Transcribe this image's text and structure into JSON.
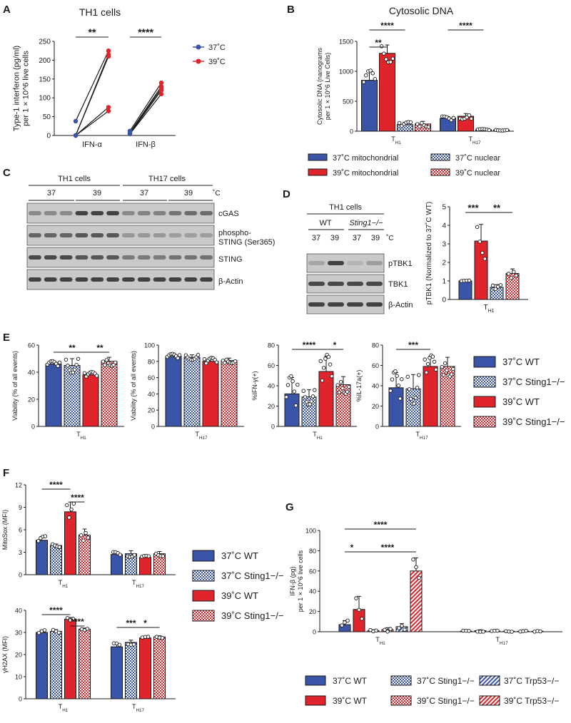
{
  "colors": {
    "blue": "#3a55a8",
    "red": "#e0242b",
    "ink": "#1a1a1a",
    "gel_bg": "#c9c9c9",
    "band": "#3b3b3b"
  },
  "panels": {
    "A": {
      "letter": "A",
      "title": "TH1 cells",
      "legend": [
        "37˚C",
        "39˚C"
      ]
    },
    "B": {
      "letter": "B",
      "title": "Cytosolic DNA",
      "legend": [
        "37˚C mitochondrial",
        "39˚C mitochondrial",
        "37˚C nuclear",
        "39˚C nuclear"
      ]
    },
    "C": {
      "letter": "C",
      "groups": [
        "TH1 cells",
        "TH17 cells"
      ],
      "temps": [
        "37",
        "39",
        "37",
        "39"
      ],
      "unit": "˚C",
      "rows": [
        "cGAS",
        "phospho-STING (Ser365)",
        "STING",
        "β-Actin"
      ]
    },
    "D": {
      "letter": "D",
      "group": "TH1 cells",
      "genotypes": [
        "WT",
        "Sting1−/−"
      ],
      "temps": [
        "37",
        "39",
        "37",
        "39"
      ],
      "unit": "˚C",
      "rows": [
        "pTBK1",
        "TBK1",
        "β-Actin"
      ]
    },
    "E": {
      "letter": "E",
      "legend": [
        "37˚C WT",
        "37˚C Sting1−/−",
        "39˚C WT",
        "39˚C Sting1−/−"
      ]
    },
    "F": {
      "letter": "F",
      "legend": [
        "37˚C WT",
        "37˚C Sting1−/−",
        "39˚C WT",
        "39˚C Sting1−/−"
      ]
    },
    "G": {
      "letter": "G",
      "legend": [
        "37˚C WT",
        "37˚C Sting1−/−",
        "37˚C Trp53−/−",
        "39˚C WT",
        "39˚C Sting1−/−",
        "39˚C Trp53−/−"
      ]
    }
  },
  "chart_data": [
    {
      "id": "A",
      "type": "scatter",
      "title": "TH1 cells",
      "ylabel": "Type-1 interferon (pg/ml) per 1 × 10^6 live cells",
      "categories": [
        "IFN-α",
        "IFN-β"
      ],
      "ylim": [
        0,
        250
      ],
      "yticks": [
        0,
        50,
        100,
        150,
        200,
        250
      ],
      "series": [
        {
          "name": "37˚C",
          "color": "#3a55a8",
          "values": [
            [
              38,
              0,
              0,
              0,
              0
            ],
            [
              12,
              8,
              6,
              5,
              4
            ]
          ]
        },
        {
          "name": "39˚C",
          "color": "#e0242b",
          "values": [
            [
              225,
              215,
              210,
              75,
              65
            ],
            [
              140,
              130,
              125,
              120,
              110
            ]
          ]
        }
      ],
      "significance": [
        {
          "category": "IFN-α",
          "label": "**"
        },
        {
          "category": "IFN-β",
          "label": "****"
        }
      ]
    },
    {
      "id": "B",
      "type": "bar",
      "title": "Cytosolic DNA",
      "ylabel": "Cytosolic DNA (nanograms per 1 × 10^6 Live Cells)",
      "categories": [
        "TH1",
        "TH17"
      ],
      "ylim": [
        0,
        1500
      ],
      "yticks": [
        0,
        500,
        1000,
        1500
      ],
      "series": [
        {
          "name": "37˚C mitochondrial",
          "values": [
            850,
            215
          ]
        },
        {
          "name": "39˚C mitochondrial",
          "values": [
            1300,
            250
          ]
        },
        {
          "name": "37˚C nuclear",
          "values": [
            110,
            25
          ]
        },
        {
          "name": "39˚C nuclear",
          "values": [
            120,
            20
          ]
        }
      ],
      "errors": [
        [
          150,
          30
        ],
        [
          140,
          45
        ],
        [
          40,
          10
        ],
        [
          45,
          8
        ]
      ],
      "significance": [
        {
          "group": 0,
          "from": 0,
          "to": 1,
          "label": "**"
        },
        {
          "group": 0,
          "from": 0,
          "to": 2,
          "label": "****"
        },
        {
          "group": 1,
          "from": 0,
          "to": 2,
          "label": "****"
        }
      ]
    },
    {
      "id": "D",
      "type": "bar",
      "ylabel": "pTBK1 (Normalized to 37˚C WT)",
      "categories": [
        "TH1"
      ],
      "ylim": [
        0,
        5
      ],
      "yticks": [
        0,
        1,
        2,
        3,
        4,
        5
      ],
      "series": [
        {
          "name": "37˚C WT",
          "values": [
            1.0
          ]
        },
        {
          "name": "39˚C WT",
          "values": [
            3.15
          ]
        },
        {
          "name": "37˚C Sting1−/−",
          "values": [
            0.65
          ]
        },
        {
          "name": "39˚C Sting1−/−",
          "values": [
            1.4
          ]
        }
      ],
      "errors": [
        [
          0.02
        ],
        [
          0.9
        ],
        [
          0.15
        ],
        [
          0.25
        ]
      ],
      "significance": [
        {
          "from": 0,
          "to": 1,
          "label": "***"
        },
        {
          "from": 1,
          "to": 3,
          "label": "**"
        }
      ]
    },
    {
      "id": "E1",
      "type": "bar",
      "ylabel": "Viability (% of all events)",
      "categories": [
        "TH1"
      ],
      "ylim": [
        0,
        60
      ],
      "yticks": [
        0,
        20,
        40,
        60
      ],
      "series": [
        {
          "name": "37˚C WT",
          "values": [
            46
          ]
        },
        {
          "name": "37˚C Sting1−/−",
          "values": [
            45
          ]
        },
        {
          "name": "39˚C WT",
          "values": [
            38
          ]
        },
        {
          "name": "39˚C Sting1−/−",
          "values": [
            48
          ]
        }
      ],
      "errors": [
        [
          2
        ],
        [
          5
        ],
        [
          2
        ],
        [
          3
        ]
      ],
      "significance": [
        {
          "from": 0,
          "to": 2,
          "label": "**"
        },
        {
          "from": 2,
          "to": 3,
          "label": "**"
        }
      ]
    },
    {
      "id": "E2",
      "type": "bar",
      "ylabel": "Viability (% of all events)",
      "categories": [
        "TH17"
      ],
      "ylim": [
        0,
        100
      ],
      "yticks": [
        0,
        20,
        40,
        60,
        80,
        100
      ],
      "series": [
        {
          "name": "37˚C WT",
          "values": [
            86
          ]
        },
        {
          "name": "37˚C Sting1−/−",
          "values": [
            85
          ]
        },
        {
          "name": "39˚C WT",
          "values": [
            80
          ]
        },
        {
          "name": "39˚C Sting1−/−",
          "values": [
            81
          ]
        }
      ],
      "errors": [
        [
          3
        ],
        [
          3
        ],
        [
          4
        ],
        [
          3
        ]
      ],
      "significance": []
    },
    {
      "id": "E3",
      "type": "bar",
      "ylabel": "%IFN-γ(+)",
      "categories": [
        "TH1"
      ],
      "ylim": [
        0,
        80
      ],
      "yticks": [
        0,
        20,
        40,
        60,
        80
      ],
      "series": [
        {
          "name": "37˚C WT",
          "values": [
            32
          ]
        },
        {
          "name": "37˚C Sting1−/−",
          "values": [
            29
          ]
        },
        {
          "name": "39˚C WT",
          "values": [
            54
          ]
        },
        {
          "name": "39˚C Sting1−/−",
          "values": [
            41
          ]
        }
      ],
      "errors": [
        [
          16
        ],
        [
          7
        ],
        [
          15
        ],
        [
          8
        ]
      ],
      "significance": [
        {
          "from": 0,
          "to": 2,
          "label": "****"
        },
        {
          "from": 2,
          "to": 3,
          "label": "*"
        }
      ]
    },
    {
      "id": "E4",
      "type": "bar",
      "ylabel": "%IL-17a(+)",
      "categories": [
        "TH17"
      ],
      "ylim": [
        0,
        80
      ],
      "yticks": [
        0,
        20,
        40,
        60,
        80
      ],
      "series": [
        {
          "name": "37˚C WT",
          "values": [
            38
          ]
        },
        {
          "name": "37˚C Sting1−/−",
          "values": [
            37
          ]
        },
        {
          "name": "39˚C WT",
          "values": [
            59
          ]
        },
        {
          "name": "39˚C Sting1−/−",
          "values": [
            59
          ]
        }
      ],
      "errors": [
        [
          15
        ],
        [
          14
        ],
        [
          10
        ],
        [
          9
        ]
      ],
      "significance": [
        {
          "from": 0,
          "to": 2,
          "label": "***"
        }
      ]
    },
    {
      "id": "F1",
      "type": "bar",
      "ylabel": "MitoSox (MFI)",
      "categories": [
        "TH1",
        "TH17"
      ],
      "ylim": [
        0,
        12
      ],
      "yticks": [
        0,
        3,
        6,
        9,
        12
      ],
      "series": [
        {
          "name": "37˚C WT",
          "values": [
            4.6,
            2.7
          ]
        },
        {
          "name": "37˚C Sting1−/−",
          "values": [
            3.9,
            2.8
          ]
        },
        {
          "name": "39˚C WT",
          "values": [
            8.4,
            2.3
          ]
        },
        {
          "name": "39˚C Sting1−/−",
          "values": [
            5.3,
            2.8
          ]
        }
      ],
      "errors": [
        [
          0.5,
          0.3
        ],
        [
          0.2,
          0.4
        ],
        [
          1.3,
          0.2
        ],
        [
          0.8,
          0.3
        ]
      ],
      "significance": [
        {
          "group": 0,
          "from": 0,
          "to": 2,
          "label": "****"
        },
        {
          "group": 0,
          "from": 2,
          "to": 3,
          "label": "****"
        }
      ]
    },
    {
      "id": "F2",
      "type": "bar",
      "ylabel": "γH2AX (MFI)",
      "categories": [
        "TH1",
        "TH17"
      ],
      "ylim": [
        0,
        40
      ],
      "yticks": [
        0,
        10,
        20,
        30,
        40
      ],
      "series": [
        {
          "name": "37˚C WT",
          "values": [
            30,
            23.5
          ]
        },
        {
          "name": "37˚C Sting1−/−",
          "values": [
            30.5,
            25.5
          ]
        },
        {
          "name": "39˚C WT",
          "values": [
            36,
            27.5
          ]
        },
        {
          "name": "39˚C Sting1−/−",
          "values": [
            31.5,
            28
          ]
        }
      ],
      "errors": [
        [
          1,
          1.5
        ],
        [
          0.8,
          1
        ],
        [
          0.8,
          0.5
        ],
        [
          0.5,
          0.5
        ]
      ],
      "significance": [
        {
          "group": 0,
          "from": 0,
          "to": 2,
          "label": "****"
        },
        {
          "group": 0,
          "from": 2,
          "to": 3,
          "label": "****"
        },
        {
          "group": 1,
          "from": 0,
          "to": 2,
          "label": "***"
        },
        {
          "group": 1,
          "from": 1,
          "to": 3,
          "label": "*"
        }
      ]
    },
    {
      "id": "G",
      "type": "bar",
      "ylabel": "IFN-β (pg) per 1 × 10^6 live cells",
      "categories": [
        "TH1",
        "TH17"
      ],
      "ylim": [
        0,
        100
      ],
      "yticks": [
        0,
        20,
        40,
        60,
        80,
        100
      ],
      "series": [
        {
          "name": "37˚C WT",
          "values": [
            7,
            0.5
          ]
        },
        {
          "name": "39˚C WT",
          "values": [
            22,
            1
          ]
        },
        {
          "name": "37˚C Sting1−/−",
          "values": [
            1,
            0.5
          ]
        },
        {
          "name": "39˚C Sting1−/−",
          "values": [
            2,
            0.5
          ]
        },
        {
          "name": "37˚C Trp53−/−",
          "values": [
            5,
            0.5
          ]
        },
        {
          "name": "39˚C Trp53−/−",
          "values": [
            60,
            0.5
          ]
        }
      ],
      "errors": [
        [
          4,
          0.5
        ],
        [
          13,
          1
        ],
        [
          1,
          0.5
        ],
        [
          2,
          0.5
        ],
        [
          3,
          0.5
        ],
        [
          13,
          0.5
        ]
      ],
      "significance": [
        {
          "group": 0,
          "from": 0,
          "to": 1,
          "label": "*"
        },
        {
          "group": 0,
          "from": 1,
          "to": 5,
          "label": "****"
        },
        {
          "group": 0,
          "from": 0,
          "to": 5,
          "label": "****"
        }
      ]
    }
  ]
}
